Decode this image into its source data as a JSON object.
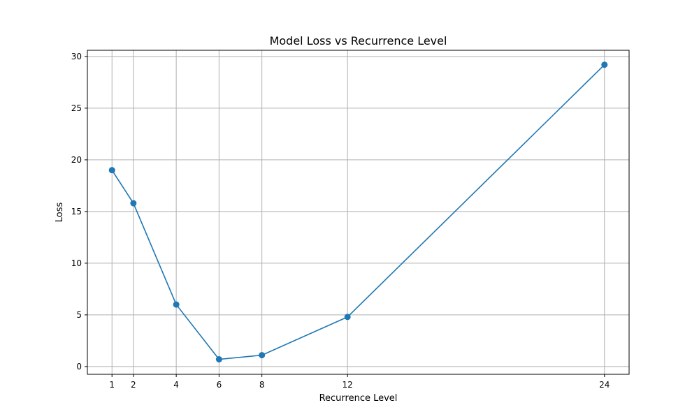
{
  "chart_data": {
    "type": "line",
    "title": "Model Loss vs Recurrence Level",
    "xlabel": "Recurrence Level",
    "ylabel": "Loss",
    "x": [
      1,
      2,
      4,
      6,
      8,
      12,
      24
    ],
    "xticks": [
      1,
      2,
      4,
      6,
      8,
      12,
      24
    ],
    "xlim": [
      -0.15,
      25.15
    ],
    "yticks": [
      0,
      5,
      10,
      15,
      20,
      25,
      30
    ],
    "ylim": [
      -0.75,
      30.6
    ],
    "grid": true,
    "series": [
      {
        "values": [
          19.0,
          15.8,
          6.0,
          0.7,
          1.1,
          4.8,
          29.2
        ],
        "color": "#1f77b4",
        "marker": "circle"
      }
    ]
  }
}
